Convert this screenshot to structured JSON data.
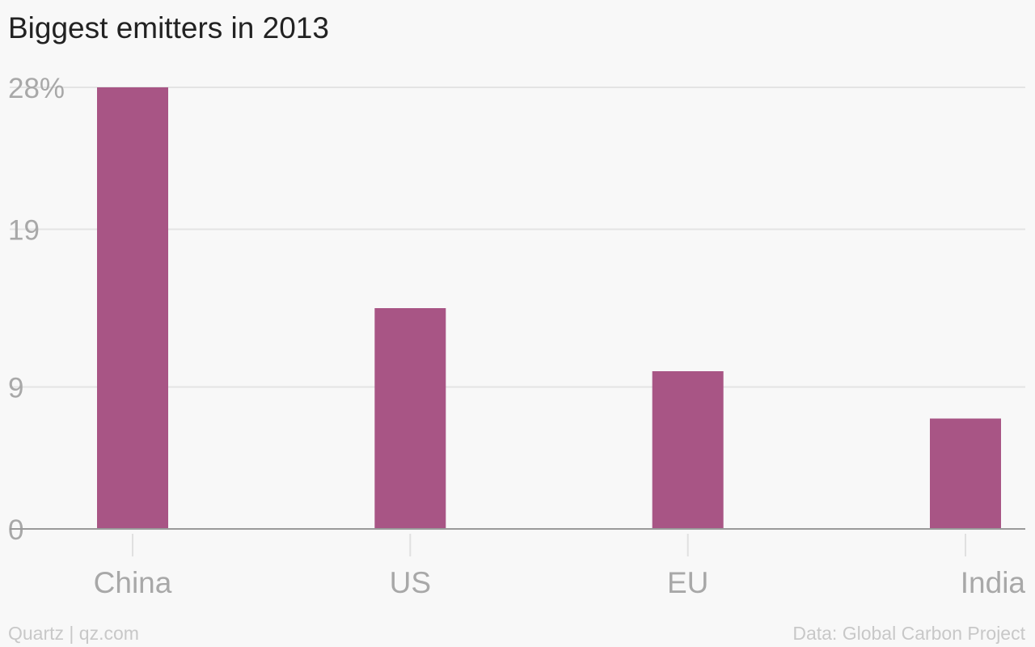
{
  "footer": {
    "credit": "Quartz | qz.com",
    "source": "Data: Global Carbon Project"
  },
  "colors": {
    "bar": "#a85585",
    "background": "#f8f8f8"
  },
  "chart_data": {
    "type": "bar",
    "title": "Biggest emitters in 2013",
    "xlabel": "",
    "ylabel": "",
    "categories": [
      "China",
      "US",
      "EU",
      "India"
    ],
    "values": [
      28,
      14,
      10,
      7
    ],
    "ylim": [
      0,
      28
    ],
    "yticks": [
      0,
      9,
      19,
      28
    ],
    "ytick_labels": [
      "0",
      "9",
      "19",
      "28%"
    ],
    "grid": true,
    "legend": "none"
  }
}
